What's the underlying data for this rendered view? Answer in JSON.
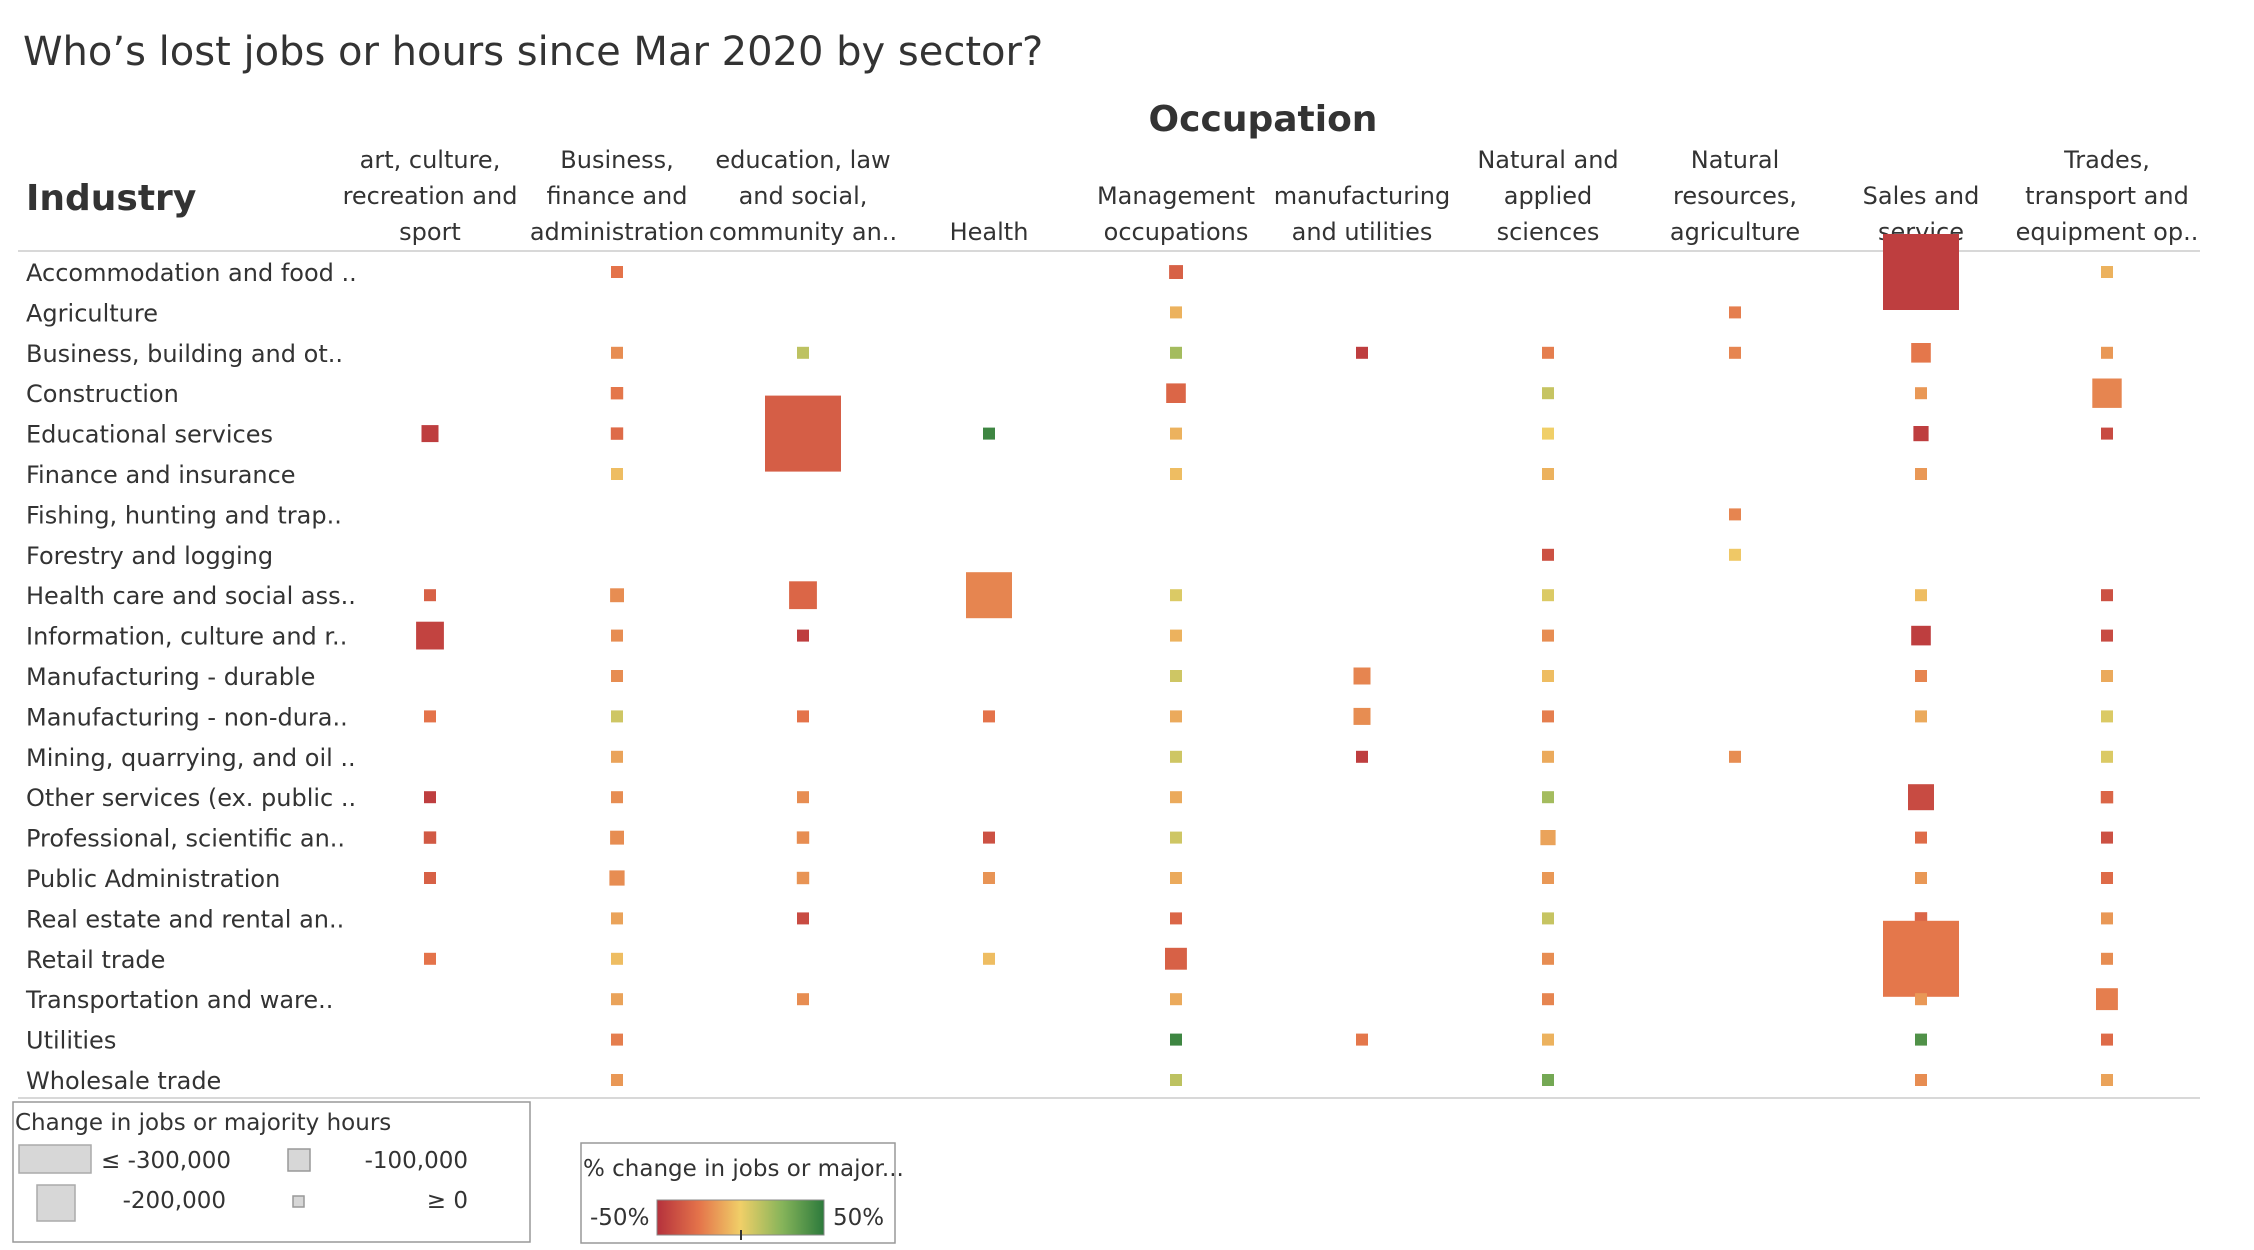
{
  "chart_data": {
    "type": "heatmap",
    "title": "Who’s lost jobs or hours since Mar 2020 by sector?",
    "column_header": "Occupation",
    "row_header": "Industry",
    "columns": [
      [
        "art, culture,",
        "recreation and",
        "sport"
      ],
      [
        "Business,",
        "finance and",
        "administration"
      ],
      [
        "education, law",
        "and social,",
        "community an.."
      ],
      [
        "Health"
      ],
      [
        "Management",
        "occupations"
      ],
      [
        "manufacturing",
        "and utilities"
      ],
      [
        "Natural and",
        "applied",
        "sciences"
      ],
      [
        "Natural",
        "resources,",
        "agriculture"
      ],
      [
        "Sales and",
        "service"
      ],
      [
        "Trades,",
        "transport and",
        "equipment op.."
      ]
    ],
    "rows": [
      "Accommodation and food ..",
      "Agriculture",
      "Business, building and ot..",
      "Construction",
      "Educational services",
      "Finance and insurance",
      "Fishing, hunting and trap..",
      "Forestry and logging",
      "Health care and social ass..",
      "Information, culture and r..",
      "Manufacturing - durable",
      "Manufacturing - non-dura..",
      "Mining, quarrying, and oil ..",
      "Other services (ex. public ..",
      "Professional, scientific an..",
      "Public Administration",
      "Real estate and rental an..",
      "Retail trade",
      "Transportation and ware..",
      "Utilities",
      "Wholesale trade"
    ],
    "size_measure": "Change in jobs or majority hours",
    "color_measure": "% change in jobs or major...",
    "color_range": [
      -50,
      50
    ],
    "cells": [
      {
        "row": 0,
        "col": 1,
        "change": -5000,
        "pct": -25
      },
      {
        "row": 0,
        "col": 4,
        "change": -10000,
        "pct": -32
      },
      {
        "row": 0,
        "col": 8,
        "change": -300000,
        "pct": -45
      },
      {
        "row": 0,
        "col": 9,
        "change": -2000,
        "pct": -8
      },
      {
        "row": 1,
        "col": 4,
        "change": -5000,
        "pct": -8
      },
      {
        "row": 1,
        "col": 7,
        "change": -5000,
        "pct": -22
      },
      {
        "row": 2,
        "col": 1,
        "change": -5000,
        "pct": -18
      },
      {
        "row": 2,
        "col": 2,
        "change": -2000,
        "pct": 12
      },
      {
        "row": 2,
        "col": 4,
        "change": -2000,
        "pct": 18
      },
      {
        "row": 2,
        "col": 5,
        "change": -5000,
        "pct": -45
      },
      {
        "row": 2,
        "col": 6,
        "change": -3000,
        "pct": -22
      },
      {
        "row": 2,
        "col": 7,
        "change": -5000,
        "pct": -20
      },
      {
        "row": 2,
        "col": 8,
        "change": -20000,
        "pct": -24
      },
      {
        "row": 2,
        "col": 9,
        "change": -3000,
        "pct": -15
      },
      {
        "row": 3,
        "col": 1,
        "change": -8000,
        "pct": -24
      },
      {
        "row": 3,
        "col": 4,
        "change": -20000,
        "pct": -30
      },
      {
        "row": 3,
        "col": 6,
        "change": -2000,
        "pct": 10
      },
      {
        "row": 3,
        "col": 8,
        "change": -3000,
        "pct": -15
      },
      {
        "row": 3,
        "col": 9,
        "change": -45000,
        "pct": -20
      },
      {
        "row": 4,
        "col": 0,
        "change": -15000,
        "pct": -45
      },
      {
        "row": 4,
        "col": 1,
        "change": -8000,
        "pct": -28
      },
      {
        "row": 4,
        "col": 2,
        "change": -300000,
        "pct": -33
      },
      {
        "row": 4,
        "col": 3,
        "change": -2000,
        "pct": 45
      },
      {
        "row": 4,
        "col": 4,
        "change": -2000,
        "pct": -8
      },
      {
        "row": 4,
        "col": 6,
        "change": -2000,
        "pct": 0
      },
      {
        "row": 4,
        "col": 8,
        "change": -12000,
        "pct": -45
      },
      {
        "row": 4,
        "col": 9,
        "change": -3000,
        "pct": -40
      },
      {
        "row": 5,
        "col": 1,
        "change": -5000,
        "pct": -5
      },
      {
        "row": 5,
        "col": 4,
        "change": -2000,
        "pct": -5
      },
      {
        "row": 5,
        "col": 6,
        "change": -2000,
        "pct": -8
      },
      {
        "row": 5,
        "col": 8,
        "change": -5000,
        "pct": -15
      },
      {
        "row": 6,
        "col": 7,
        "change": -3000,
        "pct": -20
      },
      {
        "row": 7,
        "col": 6,
        "change": -2000,
        "pct": -38
      },
      {
        "row": 7,
        "col": 7,
        "change": -2000,
        "pct": -2
      },
      {
        "row": 8,
        "col": 0,
        "change": -3000,
        "pct": -32
      },
      {
        "row": 8,
        "col": 1,
        "change": -10000,
        "pct": -18
      },
      {
        "row": 8,
        "col": 2,
        "change": -40000,
        "pct": -30
      },
      {
        "row": 8,
        "col": 3,
        "change": -110000,
        "pct": -20
      },
      {
        "row": 8,
        "col": 4,
        "change": -2000,
        "pct": 5
      },
      {
        "row": 8,
        "col": 6,
        "change": -2000,
        "pct": 5
      },
      {
        "row": 8,
        "col": 8,
        "change": -2000,
        "pct": -5
      },
      {
        "row": 8,
        "col": 9,
        "change": -2000,
        "pct": -38
      },
      {
        "row": 9,
        "col": 0,
        "change": -40000,
        "pct": -43
      },
      {
        "row": 9,
        "col": 1,
        "change": -3000,
        "pct": -18
      },
      {
        "row": 9,
        "col": 2,
        "change": -3000,
        "pct": -45
      },
      {
        "row": 9,
        "col": 4,
        "change": -2000,
        "pct": -8
      },
      {
        "row": 9,
        "col": 6,
        "change": -3000,
        "pct": -18
      },
      {
        "row": 9,
        "col": 8,
        "change": -20000,
        "pct": -45
      },
      {
        "row": 9,
        "col": 9,
        "change": -3000,
        "pct": -40
      },
      {
        "row": 10,
        "col": 1,
        "change": -3000,
        "pct": -18
      },
      {
        "row": 10,
        "col": 4,
        "change": -2000,
        "pct": 8
      },
      {
        "row": 10,
        "col": 5,
        "change": -15000,
        "pct": -20
      },
      {
        "row": 10,
        "col": 6,
        "change": -2000,
        "pct": -5
      },
      {
        "row": 10,
        "col": 8,
        "change": -3000,
        "pct": -20
      },
      {
        "row": 10,
        "col": 9,
        "change": -2000,
        "pct": -10
      },
      {
        "row": 11,
        "col": 0,
        "change": -2000,
        "pct": -25
      },
      {
        "row": 11,
        "col": 1,
        "change": -3000,
        "pct": 8
      },
      {
        "row": 11,
        "col": 2,
        "change": -2000,
        "pct": -25
      },
      {
        "row": 11,
        "col": 3,
        "change": -2000,
        "pct": -25
      },
      {
        "row": 11,
        "col": 4,
        "change": -2000,
        "pct": -10
      },
      {
        "row": 11,
        "col": 5,
        "change": -15000,
        "pct": -18
      },
      {
        "row": 11,
        "col": 6,
        "change": -3000,
        "pct": -22
      },
      {
        "row": 11,
        "col": 8,
        "change": -2000,
        "pct": -10
      },
      {
        "row": 11,
        "col": 9,
        "change": -2000,
        "pct": 5
      },
      {
        "row": 12,
        "col": 1,
        "change": -2000,
        "pct": -12
      },
      {
        "row": 12,
        "col": 4,
        "change": -2000,
        "pct": 8
      },
      {
        "row": 12,
        "col": 5,
        "change": -2000,
        "pct": -45
      },
      {
        "row": 12,
        "col": 6,
        "change": -2000,
        "pct": -10
      },
      {
        "row": 12,
        "col": 7,
        "change": -3000,
        "pct": -18
      },
      {
        "row": 12,
        "col": 9,
        "change": -2000,
        "pct": 5
      },
      {
        "row": 13,
        "col": 0,
        "change": -2000,
        "pct": -45
      },
      {
        "row": 13,
        "col": 1,
        "change": -3000,
        "pct": -18
      },
      {
        "row": 13,
        "col": 2,
        "change": -3000,
        "pct": -18
      },
      {
        "row": 13,
        "col": 4,
        "change": -2000,
        "pct": -10
      },
      {
        "row": 13,
        "col": 6,
        "change": -2000,
        "pct": 18
      },
      {
        "row": 13,
        "col": 8,
        "change": -35000,
        "pct": -40
      },
      {
        "row": 13,
        "col": 9,
        "change": -8000,
        "pct": -30
      },
      {
        "row": 14,
        "col": 0,
        "change": -8000,
        "pct": -35
      },
      {
        "row": 14,
        "col": 1,
        "change": -10000,
        "pct": -18
      },
      {
        "row": 14,
        "col": 2,
        "change": -8000,
        "pct": -18
      },
      {
        "row": 14,
        "col": 3,
        "change": -5000,
        "pct": -38
      },
      {
        "row": 14,
        "col": 4,
        "change": -2000,
        "pct": 8
      },
      {
        "row": 14,
        "col": 6,
        "change": -12000,
        "pct": -12
      },
      {
        "row": 14,
        "col": 8,
        "change": -5000,
        "pct": -28
      },
      {
        "row": 14,
        "col": 9,
        "change": -2000,
        "pct": -38
      },
      {
        "row": 15,
        "col": 0,
        "change": -3000,
        "pct": -32
      },
      {
        "row": 15,
        "col": 1,
        "change": -12000,
        "pct": -18
      },
      {
        "row": 15,
        "col": 2,
        "change": -8000,
        "pct": -16
      },
      {
        "row": 15,
        "col": 3,
        "change": -3000,
        "pct": -16
      },
      {
        "row": 15,
        "col": 4,
        "change": -2000,
        "pct": -10
      },
      {
        "row": 15,
        "col": 6,
        "change": -3000,
        "pct": -15
      },
      {
        "row": 15,
        "col": 8,
        "change": -5000,
        "pct": -15
      },
      {
        "row": 15,
        "col": 9,
        "change": -3000,
        "pct": -28
      },
      {
        "row": 16,
        "col": 1,
        "change": -2000,
        "pct": -12
      },
      {
        "row": 16,
        "col": 2,
        "change": -2000,
        "pct": -40
      },
      {
        "row": 16,
        "col": 4,
        "change": -5000,
        "pct": -30
      },
      {
        "row": 16,
        "col": 6,
        "change": -2000,
        "pct": 10
      },
      {
        "row": 16,
        "col": 8,
        "change": -8000,
        "pct": -30
      },
      {
        "row": 16,
        "col": 9,
        "change": -2000,
        "pct": -15
      },
      {
        "row": 17,
        "col": 0,
        "change": -2000,
        "pct": -25
      },
      {
        "row": 17,
        "col": 1,
        "change": -2000,
        "pct": -5
      },
      {
        "row": 17,
        "col": 3,
        "change": -2000,
        "pct": -5
      },
      {
        "row": 17,
        "col": 4,
        "change": -25000,
        "pct": -32
      },
      {
        "row": 17,
        "col": 6,
        "change": -2000,
        "pct": -18
      },
      {
        "row": 17,
        "col": 8,
        "change": -300000,
        "pct": -24
      },
      {
        "row": 17,
        "col": 9,
        "change": -3000,
        "pct": -18
      },
      {
        "row": 18,
        "col": 1,
        "change": -5000,
        "pct": -12
      },
      {
        "row": 18,
        "col": 2,
        "change": -2000,
        "pct": -18
      },
      {
        "row": 18,
        "col": 4,
        "change": -2000,
        "pct": -10
      },
      {
        "row": 18,
        "col": 6,
        "change": -3000,
        "pct": -20
      },
      {
        "row": 18,
        "col": 8,
        "change": -3000,
        "pct": -15
      },
      {
        "row": 18,
        "col": 9,
        "change": -25000,
        "pct": -22
      },
      {
        "row": 19,
        "col": 1,
        "change": -2000,
        "pct": -22
      },
      {
        "row": 19,
        "col": 4,
        "change": -2000,
        "pct": 45
      },
      {
        "row": 19,
        "col": 5,
        "change": -2000,
        "pct": -24
      },
      {
        "row": 19,
        "col": 6,
        "change": -2000,
        "pct": -8
      },
      {
        "row": 19,
        "col": 8,
        "change": -2000,
        "pct": 40
      },
      {
        "row": 19,
        "col": 9,
        "change": -3000,
        "pct": -28
      },
      {
        "row": 20,
        "col": 1,
        "change": -5000,
        "pct": -15
      },
      {
        "row": 20,
        "col": 4,
        "change": -2000,
        "pct": 12
      },
      {
        "row": 20,
        "col": 6,
        "change": -2000,
        "pct": 30
      },
      {
        "row": 20,
        "col": 8,
        "change": -5000,
        "pct": -18
      },
      {
        "row": 20,
        "col": 9,
        "change": -3000,
        "pct": -12
      }
    ],
    "size_legend": {
      "title": "Change in jobs or majority hours",
      "items": [
        {
          "label": "≤ -300,000",
          "value": -300000
        },
        {
          "label": "-100,000",
          "value": -100000
        },
        {
          "label": "-200,000",
          "value": -200000
        },
        {
          "label": "≥ 0",
          "value": 0
        }
      ]
    },
    "color_legend": {
      "title": "% change in jobs or major...",
      "min_label": "-50%",
      "max_label": "50%"
    }
  }
}
